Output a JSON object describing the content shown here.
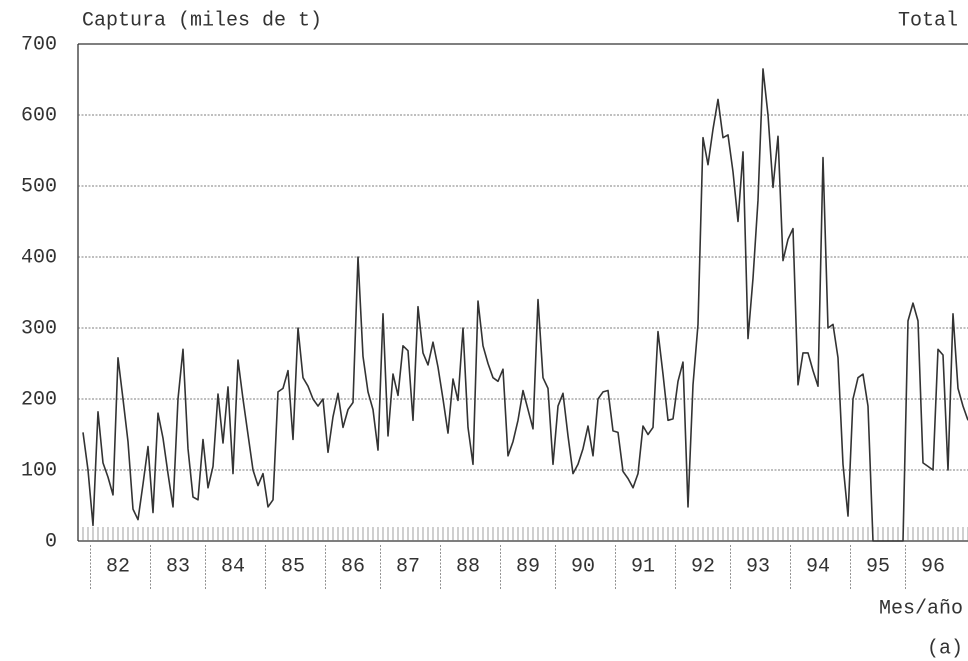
{
  "chart_data": {
    "type": "line",
    "title": "Captura (miles de t)",
    "subtitle": "Total",
    "xlabel": "Mes/año",
    "annotation": "(a)",
    "color": "#333333",
    "grid": true,
    "ylim": [
      0,
      700
    ],
    "yticks": [
      0,
      100,
      200,
      300,
      400,
      500,
      600,
      700
    ],
    "categories": [
      null,
      null,
      null,
      null,
      null,
      null,
      null,
      "82",
      null,
      null,
      null,
      null,
      null,
      null,
      null,
      null,
      null,
      null,
      null,
      "83",
      null,
      null,
      null,
      null,
      null,
      null,
      null,
      null,
      null,
      null,
      "84",
      null,
      null,
      null,
      null,
      null,
      null,
      null,
      null,
      null,
      null,
      null,
      "85",
      null,
      null,
      null,
      null,
      null,
      null,
      null,
      null,
      null,
      null,
      null,
      "86",
      null,
      null,
      null,
      null,
      null,
      null,
      null,
      null,
      null,
      null,
      "87",
      null,
      null,
      null,
      null,
      null,
      null,
      null,
      null,
      null,
      null,
      null,
      "88",
      null,
      null,
      null,
      null,
      null,
      null,
      null,
      null,
      null,
      null,
      null,
      "89",
      null,
      null,
      null,
      null,
      null,
      null,
      null,
      null,
      null,
      null,
      "90",
      null,
      null,
      null,
      null,
      null,
      null,
      null,
      null,
      null,
      null,
      null,
      "91",
      null,
      null,
      null,
      null,
      null,
      null,
      null,
      null,
      null,
      null,
      null,
      "92",
      null,
      null,
      null,
      null,
      null,
      null,
      null,
      null,
      null,
      null,
      "93",
      null,
      null,
      null,
      null,
      null,
      null,
      null,
      null,
      null,
      null,
      null,
      "94",
      null,
      null,
      null,
      null,
      null,
      null,
      null,
      null,
      null,
      null,
      null,
      "95",
      null,
      null,
      null,
      null,
      null,
      null,
      null,
      null,
      null,
      null,
      "96",
      null,
      null,
      null,
      null,
      null,
      null,
      null
    ],
    "values": [
      153,
      100,
      22,
      182,
      110,
      90,
      65,
      258,
      200,
      140,
      45,
      30,
      80,
      133,
      40,
      180,
      145,
      95,
      48,
      200,
      270,
      130,
      62,
      58,
      143,
      75,
      105,
      207,
      138,
      217,
      95,
      255,
      200,
      150,
      100,
      78,
      95,
      48,
      58,
      210,
      215,
      240,
      143,
      300,
      230,
      218,
      200,
      190,
      200,
      125,
      175,
      208,
      160,
      185,
      195,
      400,
      260,
      210,
      185,
      128,
      320,
      148,
      235,
      205,
      275,
      268,
      170,
      330,
      265,
      248,
      280,
      245,
      200,
      152,
      228,
      198,
      300,
      160,
      108,
      338,
      275,
      250,
      230,
      225,
      242,
      120,
      140,
      170,
      212,
      185,
      158,
      340,
      230,
      215,
      108,
      190,
      208,
      148,
      95,
      108,
      130,
      162,
      120,
      200,
      210,
      212,
      155,
      153,
      98,
      88,
      75,
      95,
      162,
      150,
      160,
      295,
      235,
      170,
      172,
      225,
      252,
      48,
      220,
      305,
      568,
      530,
      580,
      622,
      568,
      572,
      520,
      450,
      548,
      285,
      370,
      480,
      665,
      600,
      498,
      570,
      395,
      425,
      440,
      220,
      265,
      265,
      240,
      218,
      540,
      300,
      305,
      258,
      108,
      35,
      200,
      230,
      235,
      190,
      0,
      0,
      0,
      0,
      0,
      0,
      0,
      310,
      335,
      310,
      110,
      105,
      100,
      270,
      262,
      100,
      320,
      215,
      190,
      170
    ]
  }
}
